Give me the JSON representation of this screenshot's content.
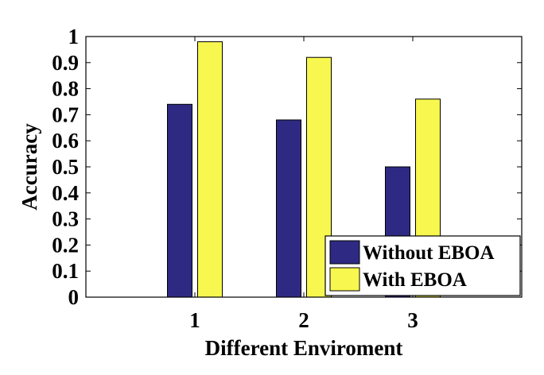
{
  "chart_data": {
    "type": "bar",
    "title": "",
    "xlabel": "Different Enviroment",
    "ylabel": "Accuracy",
    "categories": [
      "1",
      "2",
      "3"
    ],
    "series": [
      {
        "name": "Without EBOA",
        "values": [
          0.74,
          0.68,
          0.5
        ],
        "color": "#2e2a83"
      },
      {
        "name": "With EBOA",
        "values": [
          0.98,
          0.92,
          0.76
        ],
        "color": "#f7f74f"
      }
    ],
    "ylim": [
      0,
      1
    ],
    "yticks": [
      "0",
      "0.1",
      "0.2",
      "0.3",
      "0.4",
      "0.5",
      "0.6",
      "0.7",
      "0.8",
      "0.9",
      "1"
    ],
    "xlim": [
      0,
      4
    ],
    "grid": false,
    "legend_position": "bottom-right"
  }
}
